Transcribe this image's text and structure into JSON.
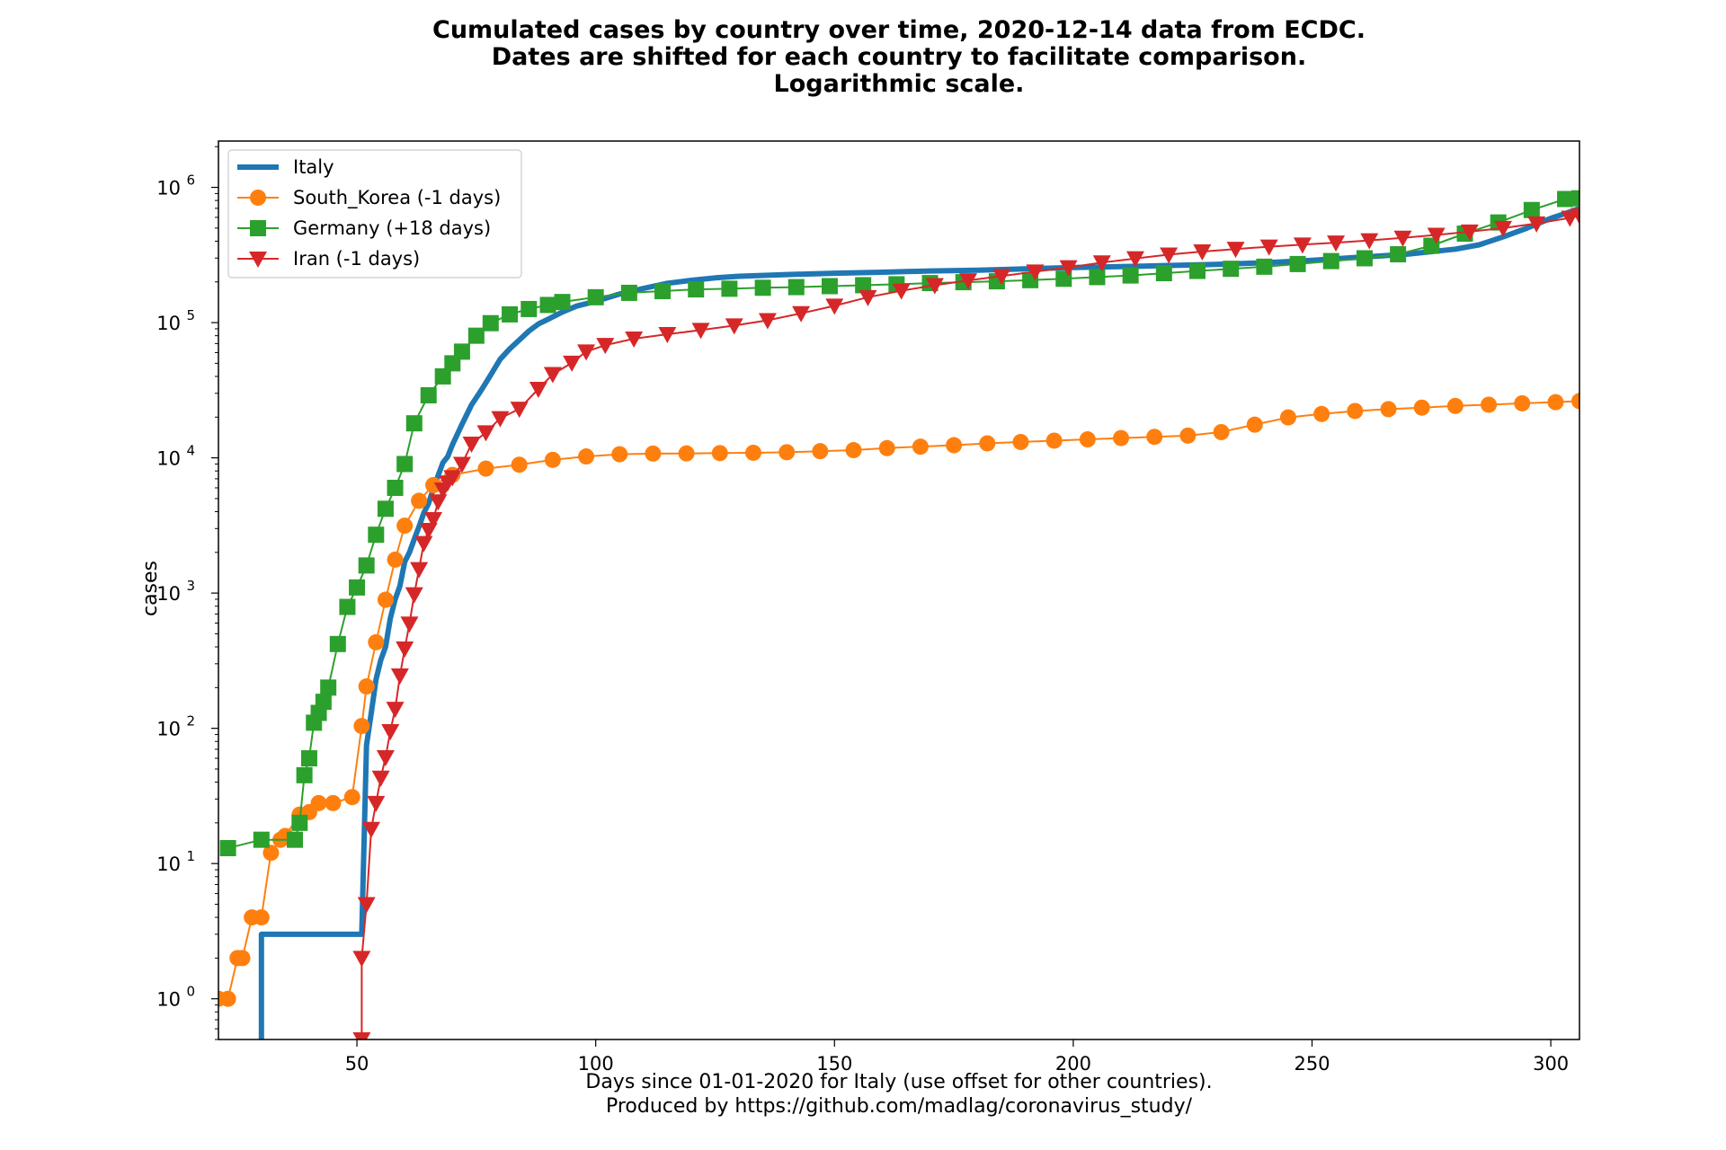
{
  "chart_data": {
    "type": "line",
    "title_lines": [
      "Cumulated cases by country over time, 2020-12-14 data from ECDC.",
      "Dates are shifted for each country to facilitate comparison.",
      "Logarithmic scale."
    ],
    "xlabel_lines": [
      "Days since 01-01-2020 for Italy (use offset for other countries).",
      "Produced by https://github.com/madlag/coronavirus_study/"
    ],
    "ylabel": "cases",
    "xlim": [
      21,
      306
    ],
    "ylim": [
      0.5,
      2200000
    ],
    "yscale": "log",
    "x_ticks": [
      50,
      100,
      150,
      200,
      250,
      300
    ],
    "y_ticks": [
      {
        "value": 1,
        "base": "10",
        "exp": "0"
      },
      {
        "value": 10,
        "base": "10",
        "exp": "1"
      },
      {
        "value": 100,
        "base": "10",
        "exp": "2"
      },
      {
        "value": 1000,
        "base": "10",
        "exp": "3"
      },
      {
        "value": 10000,
        "base": "10",
        "exp": "4"
      },
      {
        "value": 100000,
        "base": "10",
        "exp": "5"
      },
      {
        "value": 1000000,
        "base": "10",
        "exp": "6"
      }
    ],
    "grid": false,
    "legend_position": "top-left",
    "series": [
      {
        "name": "Italy",
        "color": "#1f77b4",
        "marker": "none",
        "line_width": 6,
        "x": [
          30,
          30,
          51,
          51,
          52,
          53,
          54,
          55,
          56,
          57,
          58,
          59,
          60,
          61,
          62,
          63,
          64,
          65,
          66,
          67,
          68,
          69,
          70,
          72,
          74,
          76,
          78,
          80,
          82,
          84,
          86,
          88,
          90,
          93,
          96,
          100,
          105,
          110,
          115,
          120,
          125,
          130,
          140,
          150,
          160,
          170,
          180,
          190,
          200,
          210,
          220,
          230,
          240,
          250,
          260,
          270,
          280,
          285,
          290,
          295,
          300,
          303,
          306
        ],
        "y": [
          0.5,
          3,
          3,
          3,
          75,
          130,
          230,
          320,
          400,
          650,
          900,
          1130,
          1700,
          2000,
          2500,
          3100,
          3900,
          4600,
          5900,
          7400,
          9200,
          10200,
          12500,
          17700,
          24700,
          31500,
          41000,
          53600,
          63900,
          74400,
          86500,
          97700,
          105800,
          119800,
          132500,
          143600,
          162500,
          178900,
          195400,
          205500,
          214000,
          220000,
          226700,
          231700,
          235800,
          240800,
          244200,
          249800,
          255300,
          259300,
          264300,
          269200,
          276800,
          288700,
          304300,
          320700,
          349500,
          376000,
          430000,
          500000,
          590000,
          640000,
          700000
        ]
      },
      {
        "name": "South_Korea (-1 days)",
        "color": "#ff7f0e",
        "marker": "circle",
        "line_width": 2,
        "x": [
          21,
          23,
          25,
          26,
          28,
          30,
          32,
          34,
          35,
          38,
          40,
          42,
          45,
          49,
          51,
          52,
          54,
          56,
          58,
          60,
          63,
          66,
          70,
          77,
          84,
          91,
          98,
          105,
          112,
          119,
          126,
          133,
          140,
          147,
          154,
          161,
          168,
          175,
          182,
          189,
          196,
          203,
          210,
          217,
          224,
          231,
          238,
          245,
          252,
          259,
          266,
          273,
          280,
          287,
          294,
          301,
          306
        ],
        "y": [
          1,
          1,
          2,
          2,
          4,
          4,
          12,
          15,
          16,
          23,
          24,
          28,
          28,
          31,
          104,
          204,
          433,
          893,
          1766,
          3150,
          4812,
          6284,
          7478,
          8320,
          8897,
          9661,
          10237,
          10635,
          10752,
          10780,
          10840,
          10900,
          11000,
          11200,
          11400,
          11800,
          12100,
          12400,
          12800,
          13100,
          13400,
          13700,
          14000,
          14300,
          14600,
          15500,
          17600,
          19900,
          21100,
          22200,
          22900,
          23500,
          24200,
          24700,
          25300,
          25800,
          26300
        ]
      },
      {
        "name": "Germany (+18 days)",
        "color": "#2ca02c",
        "marker": "square",
        "line_width": 2,
        "x": [
          23,
          30,
          37,
          38,
          39,
          40,
          41,
          42,
          43,
          44,
          46,
          48,
          50,
          52,
          54,
          56,
          58,
          60,
          62,
          65,
          68,
          70,
          72,
          75,
          78,
          82,
          86,
          90,
          93,
          100,
          107,
          114,
          121,
          128,
          135,
          142,
          149,
          156,
          163,
          170,
          177,
          184,
          191,
          198,
          205,
          212,
          219,
          226,
          233,
          240,
          247,
          254,
          261,
          268,
          275,
          282,
          289,
          296,
          303,
          306
        ],
        "y": [
          13,
          15,
          15,
          20,
          45,
          60,
          110,
          130,
          157,
          200,
          420,
          790,
          1100,
          1600,
          2700,
          4200,
          6000,
          9000,
          18000,
          29000,
          40000,
          50000,
          61000,
          80000,
          99000,
          115000,
          126000,
          135000,
          142000,
          154000,
          166000,
          171000,
          176000,
          178000,
          181000,
          183000,
          186000,
          189000,
          192000,
          196000,
          199000,
          202000,
          206000,
          211000,
          217000,
          223000,
          232000,
          241000,
          250000,
          259000,
          271000,
          285000,
          299000,
          320000,
          370000,
          455000,
          550000,
          680000,
          820000,
          830000
        ]
      },
      {
        "name": "Iran (-1 days)",
        "color": "#d62728",
        "marker": "triangle-down",
        "line_width": 2,
        "x": [
          51,
          51,
          52,
          53,
          54,
          55,
          56,
          57,
          58,
          59,
          60,
          61,
          62,
          63,
          64,
          65,
          66,
          67,
          68,
          69,
          70,
          72,
          74,
          77,
          80,
          84,
          88,
          91,
          95,
          98,
          102,
          108,
          115,
          122,
          129,
          136,
          143,
          150,
          157,
          164,
          171,
          178,
          185,
          192,
          199,
          206,
          213,
          220,
          227,
          234,
          241,
          248,
          255,
          262,
          269,
          276,
          283,
          290,
          297,
          304,
          306
        ],
        "y": [
          0.5,
          2,
          5,
          18,
          28,
          43,
          61,
          95,
          139,
          245,
          388,
          593,
          978,
          1501,
          2336,
          2922,
          3513,
          4747,
          5823,
          6566,
          7161,
          9000,
          12700,
          15400,
          19600,
          23000,
          32300,
          41500,
          50400,
          61000,
          68100,
          76000,
          82000,
          88000,
          95000,
          104000,
          117000,
          133000,
          154000,
          172000,
          189000,
          205000,
          221000,
          238000,
          256000,
          278000,
          298000,
          318000,
          335000,
          350000,
          364000,
          377000,
          390000,
          405000,
          423000,
          445000,
          470000,
          500000,
          540000,
          595000,
          620000
        ]
      }
    ]
  }
}
